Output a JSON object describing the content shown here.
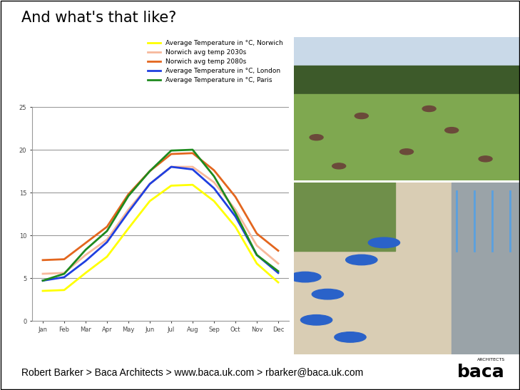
{
  "header": {
    "title": "And what's that like?"
  },
  "chart_data": {
    "type": "line",
    "categories": [
      "Jan",
      "Feb",
      "Mar",
      "Apr",
      "May",
      "Jun",
      "Jul",
      "Aug",
      "Sep",
      "Oct",
      "Nov",
      "Dec"
    ],
    "series": [
      {
        "name": "Average Temperature in °C, Norwich",
        "color": "#ffff00",
        "values": [
          3.5,
          3.6,
          5.6,
          7.5,
          10.8,
          14.0,
          15.8,
          15.9,
          14.0,
          11.0,
          6.7,
          4.5
        ]
      },
      {
        "name": "Norwich avg temp 2030s",
        "color": "#f7b99c",
        "values": [
          5.5,
          5.6,
          7.7,
          9.5,
          13.0,
          16.0,
          18.0,
          18.0,
          16.2,
          13.0,
          8.8,
          6.7
        ]
      },
      {
        "name": "Norwich avg temp 2080s",
        "color": "#e3661e",
        "values": [
          7.1,
          7.2,
          9.1,
          11.0,
          14.8,
          17.5,
          19.5,
          19.6,
          17.6,
          14.5,
          10.2,
          8.2
        ]
      },
      {
        "name": "Average Temperature in °C, London",
        "color": "#1f3fe0",
        "values": [
          4.7,
          5.1,
          7.0,
          9.2,
          12.7,
          16.0,
          18.0,
          17.7,
          15.5,
          12.2,
          7.7,
          5.6
        ]
      },
      {
        "name": "Average Temperature in °C, Paris",
        "color": "#1e8a1e",
        "values": [
          4.7,
          5.5,
          8.3,
          10.5,
          14.6,
          17.5,
          19.9,
          20.0,
          16.9,
          12.6,
          7.7,
          5.8
        ]
      }
    ],
    "ylim": [
      0,
      25
    ],
    "yticks": [
      0,
      5,
      10,
      15,
      20,
      25
    ],
    "grid": true,
    "legend": "upper right"
  },
  "footer": {
    "text": "Robert Barker > Baca Architects > www.baca.uk.com > rbarker@baca.uk.com"
  },
  "logo": {
    "text": "baca",
    "subtext": "ARCHITECTS"
  }
}
